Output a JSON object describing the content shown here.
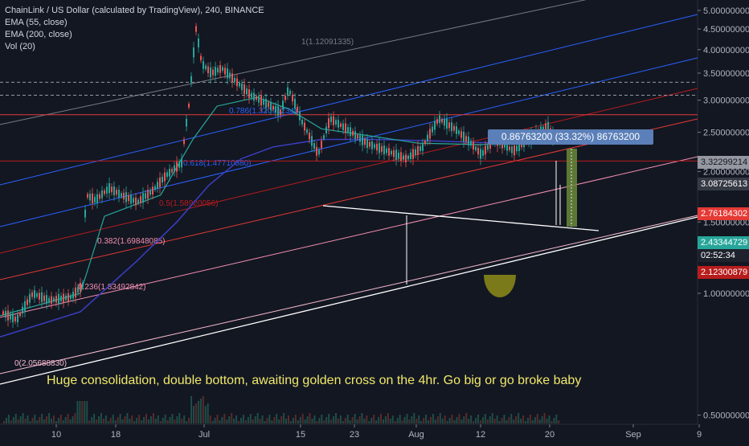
{
  "legend": {
    "symbol": "ChainLink / US Dollar (calculated by TradingView), 240, BINANCE",
    "ema55": "EMA (55, close)",
    "ema200": "EMA (200, close)",
    "volume": "Vol (20)"
  },
  "annotation": "Huge consolidation, double bottom, awaiting golden cross on the 4hr. Go big or go broke baby",
  "measure_label": "0.86763200 (33.32%) 86763200",
  "colors": {
    "background": "#131722",
    "up": "#26a69a",
    "down": "#ef5350",
    "ema55": "#26a69a",
    "ema200": "#3b3fc4",
    "annotation": "#f0e86a"
  },
  "price_tags": [
    {
      "value": "3.32299214",
      "color": "#9598a1"
    },
    {
      "value": "3.08725613",
      "color": "#363a45"
    },
    {
      "value": "2.76184302",
      "color": "#e53935"
    },
    {
      "value": "2.43344729",
      "color": "#26a69a"
    },
    {
      "value": "02:52:34",
      "color": "#1e222d"
    },
    {
      "value": "2.12300879",
      "color": "#b71c1c"
    }
  ],
  "fib_labels": [
    {
      "text": "1(1.12091335)",
      "color": "#787b86"
    },
    {
      "text": "0.786(1.32091234)",
      "color": "#2962ff"
    },
    {
      "text": "0.618(1.47710880)",
      "color": "#2962ff"
    },
    {
      "text": "0.5(1.58920056)",
      "color": "#b71c1c"
    },
    {
      "text": "0.382(1.69848085)",
      "color": "#f48fb1"
    },
    {
      "text": "0.236(1.83492842)",
      "color": "#f48fb1"
    },
    {
      "text": "0(2.05688830)",
      "color": "#f8bbd0"
    }
  ],
  "chart_data": {
    "type": "candlestick",
    "symbol": "ChainLink / US Dollar (calculated by TradingView), 240, BINANCE",
    "y_axis": {
      "scale": "log",
      "ticks": [
        "5.00000000",
        "4.50000000",
        "4.00000000",
        "3.50000000",
        "3.00000000",
        "2.50000000",
        "2.00000000",
        "1.50000000",
        "1.00000000",
        "0.50000000"
      ],
      "range": [
        0.49,
        5.0
      ]
    },
    "x_axis": {
      "ticks": [
        "10",
        "18",
        "Jul",
        "15",
        "23",
        "Aug",
        "12",
        "20",
        "Sep",
        "9"
      ]
    },
    "series": [
      {
        "name": "ChainLink / US Dollar",
        "path": [
          [
            "10",
            0.9
          ],
          [
            "18",
            1.8
          ],
          [
            "Jul",
            4.2
          ],
          [
            "15",
            2.9
          ],
          [
            "23",
            2.7
          ],
          [
            "Aug",
            2.45
          ],
          [
            "12",
            2.35
          ],
          [
            "20",
            2.43
          ]
        ]
      }
    ],
    "horizontal_levels": [
      3.32299214,
      3.08725613,
      2.76184302,
      2.43344729,
      2.12300879
    ]
  }
}
